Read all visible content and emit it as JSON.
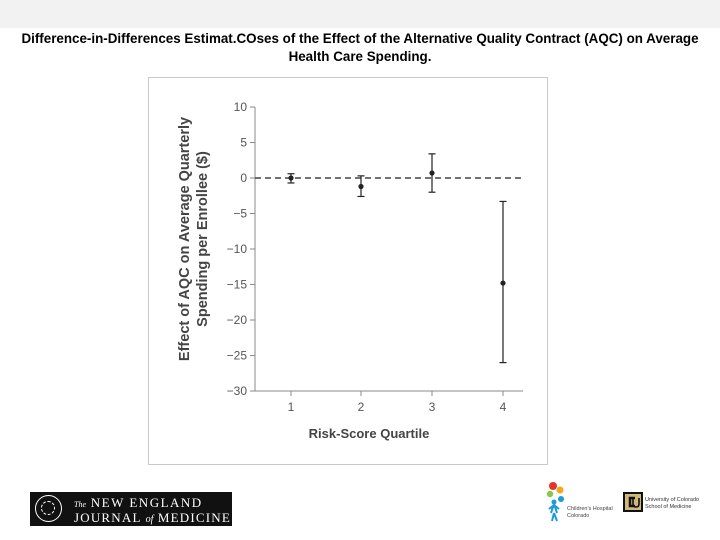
{
  "slide": {
    "title": "Difference-in-Differences Estimat.COses of the Effect of the Alternative Quality Contract (AQC) on Average Health Care Spending."
  },
  "chart_data": {
    "type": "scatter",
    "subtype": "point-with-error-bars",
    "title": "",
    "xlabel": "Risk-Score Quartile",
    "ylabel_line1": "Effect of AQC on Average Quarterly",
    "ylabel_line2": "Spending per Enrollee ($)",
    "categories": [
      "1",
      "2",
      "3",
      "4"
    ],
    "ylim": [
      -30,
      10
    ],
    "yticks": [
      10,
      5,
      0,
      -5,
      -10,
      -15,
      -20,
      -25,
      -30
    ],
    "ytick_labels": [
      "10",
      "5",
      "0",
      "−5",
      "−10",
      "−15",
      "−20",
      "−25",
      "−30"
    ],
    "points": [
      {
        "x": "1",
        "y": 0.0,
        "lower": -0.7,
        "upper": 0.6
      },
      {
        "x": "2",
        "y": -1.2,
        "lower": -2.6,
        "upper": 0.3
      },
      {
        "x": "3",
        "y": 0.7,
        "lower": -2.0,
        "upper": 3.4
      },
      {
        "x": "4",
        "y": -14.8,
        "lower": -26.0,
        "upper": -3.3
      }
    ],
    "reference_line": {
      "y": 0,
      "style": "dashed"
    },
    "grid": false,
    "legend": "none",
    "colors": {
      "marks": "#222222",
      "axis": "#8a8a8a",
      "reference": "#444444"
    }
  },
  "logos": {
    "nejm_line1_prefix": "The",
    "nejm_line1": "NEW ENGLAND",
    "nejm_line2_a": "JOURNAL",
    "nejm_line2_of": "of",
    "nejm_line2_b": "MEDICINE",
    "childrens_hospital": "Children's Hospital\nColorado",
    "cu_school": "University of Colorado\nSchool of Medicine"
  }
}
